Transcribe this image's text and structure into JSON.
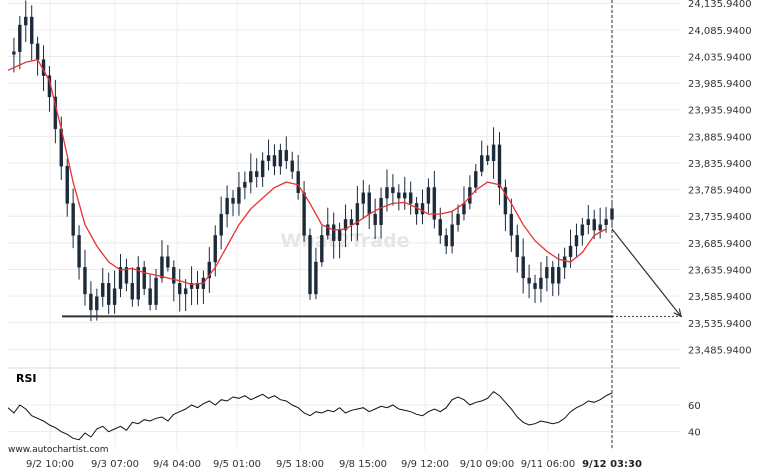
{
  "chart_data": [
    {
      "type": "candlestick",
      "y_axis_labels": [
        "24,135.9400",
        "24,085.9400",
        "24,035.9400",
        "23,985.9400",
        "23,935.9400",
        "23,885.9400",
        "23,835.9400",
        "23,785.9400",
        "23,735.9400",
        "23,685.9400",
        "23,635.9400",
        "23,585.9400",
        "23,535.9400",
        "23,485.9400"
      ],
      "ylim": [
        23466.0,
        24142.0
      ],
      "x_tick_labels": [
        "9/2 10:00",
        "9/3 07:00",
        "9/4 04:00",
        "9/5 01:00",
        "9/5 18:00",
        "9/8 15:00",
        "9/9 12:00",
        "9/10 09:00",
        "9/11 06:00",
        "9/12 03:30"
      ],
      "support_level": 23548.0,
      "current_time_label": "9/12 03:30",
      "projection": {
        "from": {
          "x": "9/12 03:30",
          "y": 23712
        },
        "to": {
          "y": 23548
        }
      },
      "price_path": [
        [
          0,
          24040
        ],
        [
          1,
          24045
        ],
        [
          2,
          24095
        ],
        [
          3,
          24110
        ],
        [
          4,
          24060
        ],
        [
          5,
          24030
        ],
        [
          6,
          24000
        ],
        [
          7,
          23960
        ],
        [
          8,
          23900
        ],
        [
          9,
          23830
        ],
        [
          10,
          23760
        ],
        [
          11,
          23700
        ],
        [
          12,
          23640
        ],
        [
          13,
          23590
        ],
        [
          14,
          23560
        ],
        [
          15,
          23585
        ],
        [
          16,
          23610
        ],
        [
          17,
          23570
        ],
        [
          18,
          23600
        ],
        [
          19,
          23640
        ],
        [
          20,
          23610
        ],
        [
          21,
          23580
        ],
        [
          22,
          23640
        ],
        [
          23,
          23600
        ],
        [
          24,
          23570
        ],
        [
          25,
          23620
        ],
        [
          26,
          23660
        ],
        [
          27,
          23640
        ],
        [
          28,
          23610
        ],
        [
          29,
          23590
        ],
        [
          30,
          23600
        ],
        [
          31,
          23610
        ],
        [
          32,
          23600
        ],
        [
          33,
          23620
        ],
        [
          34,
          23650
        ],
        [
          35,
          23700
        ],
        [
          36,
          23740
        ],
        [
          37,
          23770
        ],
        [
          38,
          23760
        ],
        [
          39,
          23790
        ],
        [
          40,
          23800
        ],
        [
          41,
          23820
        ],
        [
          42,
          23810
        ],
        [
          43,
          23840
        ],
        [
          44,
          23850
        ],
        [
          45,
          23830
        ],
        [
          46,
          23860
        ],
        [
          47,
          23840
        ],
        [
          48,
          23820
        ],
        [
          49,
          23780
        ],
        [
          50,
          23700
        ],
        [
          51,
          23590
        ],
        [
          52,
          23650
        ],
        [
          53,
          23700
        ],
        [
          54,
          23720
        ],
        [
          55,
          23690
        ],
        [
          56,
          23710
        ],
        [
          57,
          23730
        ],
        [
          58,
          23720
        ],
        [
          59,
          23760
        ],
        [
          60,
          23780
        ],
        [
          61,
          23740
        ],
        [
          62,
          23720
        ],
        [
          63,
          23770
        ],
        [
          64,
          23790
        ],
        [
          65,
          23780
        ],
        [
          66,
          23770
        ],
        [
          67,
          23780
        ],
        [
          68,
          23760
        ],
        [
          69,
          23740
        ],
        [
          70,
          23760
        ],
        [
          71,
          23790
        ],
        [
          72,
          23730
        ],
        [
          73,
          23700
        ],
        [
          74,
          23680
        ],
        [
          75,
          23720
        ],
        [
          76,
          23740
        ],
        [
          77,
          23760
        ],
        [
          78,
          23790
        ],
        [
          79,
          23820
        ],
        [
          80,
          23850
        ],
        [
          81,
          23840
        ],
        [
          82,
          23870
        ],
        [
          83,
          23790
        ],
        [
          84,
          23740
        ],
        [
          85,
          23700
        ],
        [
          86,
          23660
        ],
        [
          87,
          23620
        ],
        [
          88,
          23610
        ],
        [
          89,
          23600
        ],
        [
          90,
          23620
        ],
        [
          91,
          23640
        ],
        [
          92,
          23610
        ],
        [
          93,
          23640
        ],
        [
          94,
          23660
        ],
        [
          95,
          23680
        ],
        [
          96,
          23700
        ],
        [
          97,
          23720
        ],
        [
          98,
          23730
        ],
        [
          99,
          23710
        ],
        [
          100,
          23720
        ],
        [
          101,
          23730
        ],
        [
          102,
          23750
        ]
      ],
      "moving_average": [
        [
          0,
          24010
        ],
        [
          3,
          24025
        ],
        [
          5,
          24030
        ],
        [
          7,
          23990
        ],
        [
          9,
          23900
        ],
        [
          11,
          23800
        ],
        [
          13,
          23720
        ],
        [
          15,
          23680
        ],
        [
          17,
          23650
        ],
        [
          19,
          23635
        ],
        [
          21,
          23638
        ],
        [
          23,
          23630
        ],
        [
          25,
          23625
        ],
        [
          27,
          23620
        ],
        [
          29,
          23615
        ],
        [
          31,
          23608
        ],
        [
          33,
          23610
        ],
        [
          35,
          23640
        ],
        [
          37,
          23680
        ],
        [
          39,
          23720
        ],
        [
          41,
          23750
        ],
        [
          43,
          23770
        ],
        [
          45,
          23790
        ],
        [
          47,
          23800
        ],
        [
          49,
          23795
        ],
        [
          51,
          23760
        ],
        [
          53,
          23720
        ],
        [
          55,
          23710
        ],
        [
          57,
          23712
        ],
        [
          59,
          23725
        ],
        [
          61,
          23740
        ],
        [
          63,
          23752
        ],
        [
          65,
          23760
        ],
        [
          67,
          23762
        ],
        [
          69,
          23752
        ],
        [
          71,
          23740
        ],
        [
          73,
          23740
        ],
        [
          75,
          23745
        ],
        [
          77,
          23760
        ],
        [
          79,
          23785
        ],
        [
          81,
          23800
        ],
        [
          83,
          23795
        ],
        [
          85,
          23760
        ],
        [
          87,
          23720
        ],
        [
          89,
          23690
        ],
        [
          91,
          23670
        ],
        [
          93,
          23655
        ],
        [
          95,
          23650
        ],
        [
          97,
          23668
        ],
        [
          99,
          23700
        ],
        [
          101,
          23712
        ]
      ]
    },
    {
      "type": "line",
      "title": "RSI",
      "y_axis_labels": [
        "60",
        "40"
      ],
      "ylim": [
        30,
        75
      ],
      "values": [
        [
          0,
          58
        ],
        [
          1,
          54
        ],
        [
          2,
          60
        ],
        [
          3,
          57
        ],
        [
          4,
          52
        ],
        [
          5,
          50
        ],
        [
          6,
          48
        ],
        [
          7,
          45
        ],
        [
          8,
          43
        ],
        [
          9,
          40
        ],
        [
          10,
          38
        ],
        [
          11,
          35
        ],
        [
          12,
          34
        ],
        [
          13,
          39
        ],
        [
          14,
          36
        ],
        [
          15,
          42
        ],
        [
          16,
          44
        ],
        [
          17,
          40
        ],
        [
          18,
          42
        ],
        [
          19,
          44
        ],
        [
          20,
          41
        ],
        [
          21,
          47
        ],
        [
          22,
          46
        ],
        [
          23,
          49
        ],
        [
          24,
          48
        ],
        [
          25,
          50
        ],
        [
          26,
          51
        ],
        [
          27,
          48
        ],
        [
          28,
          53
        ],
        [
          29,
          55
        ],
        [
          30,
          57
        ],
        [
          31,
          60
        ],
        [
          32,
          58
        ],
        [
          33,
          61
        ],
        [
          34,
          63
        ],
        [
          35,
          60
        ],
        [
          36,
          64
        ],
        [
          37,
          63
        ],
        [
          38,
          66
        ],
        [
          39,
          65
        ],
        [
          40,
          67
        ],
        [
          41,
          64
        ],
        [
          42,
          66
        ],
        [
          43,
          68
        ],
        [
          44,
          65
        ],
        [
          45,
          67
        ],
        [
          46,
          64
        ],
        [
          47,
          63
        ],
        [
          48,
          60
        ],
        [
          49,
          58
        ],
        [
          50,
          54
        ],
        [
          51,
          52
        ],
        [
          52,
          55
        ],
        [
          53,
          54
        ],
        [
          54,
          56
        ],
        [
          55,
          55
        ],
        [
          56,
          58
        ],
        [
          57,
          54
        ],
        [
          58,
          56
        ],
        [
          59,
          57
        ],
        [
          60,
          58
        ],
        [
          61,
          55
        ],
        [
          62,
          57
        ],
        [
          63,
          59
        ],
        [
          64,
          58
        ],
        [
          65,
          60
        ],
        [
          66,
          57
        ],
        [
          67,
          56
        ],
        [
          68,
          55
        ],
        [
          69,
          53
        ],
        [
          70,
          52
        ],
        [
          71,
          55
        ],
        [
          72,
          57
        ],
        [
          73,
          55
        ],
        [
          74,
          58
        ],
        [
          75,
          64
        ],
        [
          76,
          66
        ],
        [
          77,
          64
        ],
        [
          78,
          60
        ],
        [
          79,
          62
        ],
        [
          80,
          63
        ],
        [
          81,
          65
        ],
        [
          82,
          70
        ],
        [
          83,
          67
        ],
        [
          84,
          62
        ],
        [
          85,
          57
        ],
        [
          86,
          51
        ],
        [
          87,
          47
        ],
        [
          88,
          45
        ],
        [
          89,
          46
        ],
        [
          90,
          48
        ],
        [
          91,
          47
        ],
        [
          92,
          46
        ],
        [
          93,
          47
        ],
        [
          94,
          50
        ],
        [
          95,
          55
        ],
        [
          96,
          58
        ],
        [
          97,
          60
        ],
        [
          98,
          63
        ],
        [
          99,
          62
        ],
        [
          100,
          64
        ],
        [
          101,
          67
        ],
        [
          102,
          69
        ]
      ]
    }
  ],
  "watermark": "What2Trade",
  "credit": "www.autochartist.com"
}
